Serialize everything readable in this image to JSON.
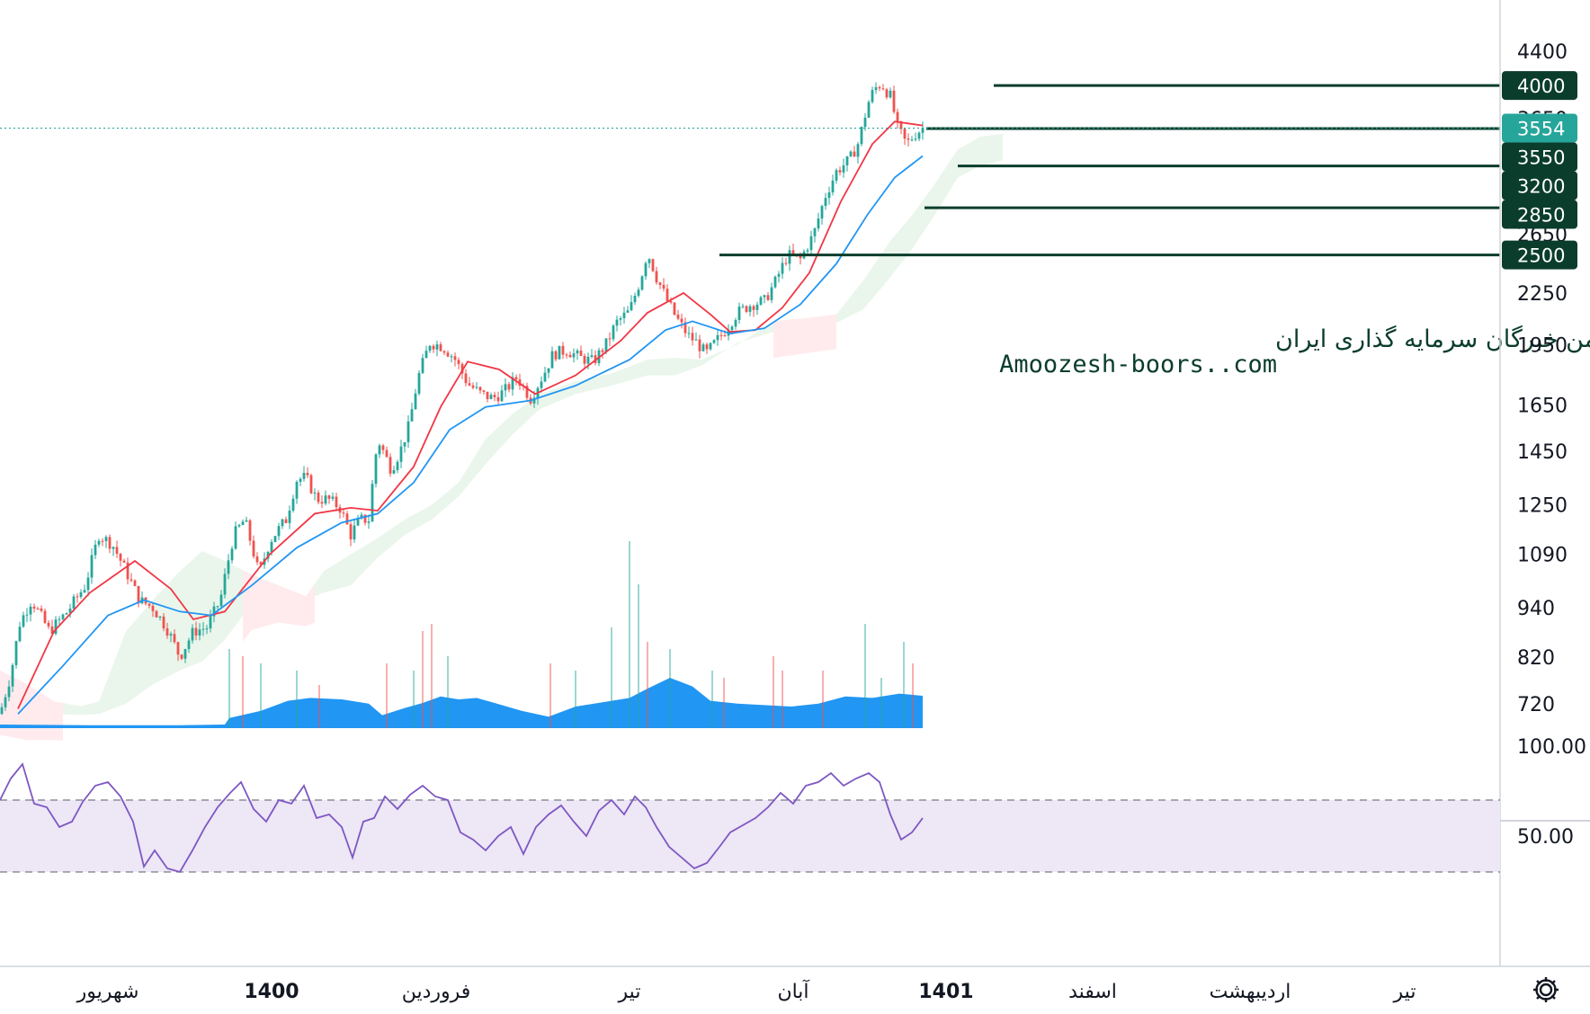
{
  "chart_data": {
    "type": "candlestick",
    "price_axis": {
      "scale": "log",
      "ylim": [
        690,
        4800
      ],
      "ticks": [
        "4400",
        "3650",
        "2650",
        "2250",
        "1950",
        "1650",
        "1450",
        "1250",
        "1090",
        "940",
        "820",
        "720"
      ]
    },
    "rsi_axis": {
      "ylim": [
        0,
        100
      ],
      "ticks": [
        "100.00",
        "50.00"
      ],
      "upper_band": 70,
      "lower_band": 30
    },
    "time_axis": {
      "labels": [
        {
          "text": "شهریور",
          "bold": false
        },
        {
          "text": "1400",
          "bold": true
        },
        {
          "text": "فروردین",
          "bold": false
        },
        {
          "text": "تیر",
          "bold": false
        },
        {
          "text": "آبان",
          "bold": false
        },
        {
          "text": "1401",
          "bold": true
        },
        {
          "text": "اسفند",
          "bold": false
        },
        {
          "text": "اردیبهشت",
          "bold": false
        },
        {
          "text": "تیر",
          "bold": false
        }
      ]
    },
    "last_price": {
      "value": 3554,
      "label": "3554"
    },
    "levels": [
      {
        "value": 4000,
        "label": "4000"
      },
      {
        "value": 3550,
        "label": "3550"
      },
      {
        "value": 3200,
        "label": "3200"
      },
      {
        "value": 2850,
        "label": "2850"
      },
      {
        "value": 2500,
        "label": "2500"
      }
    ],
    "price_path": [
      [
        0,
        700
      ],
      [
        12,
        780
      ],
      [
        22,
        900
      ],
      [
        35,
        960
      ],
      [
        55,
        880
      ],
      [
        75,
        930
      ],
      [
        95,
        1000
      ],
      [
        110,
        1150
      ],
      [
        125,
        1120
      ],
      [
        140,
        1040
      ],
      [
        155,
        960
      ],
      [
        170,
        940
      ],
      [
        185,
        890
      ],
      [
        200,
        820
      ],
      [
        215,
        880
      ],
      [
        230,
        890
      ],
      [
        245,
        960
      ],
      [
        260,
        1150
      ],
      [
        272,
        1200
      ],
      [
        288,
        1030
      ],
      [
        300,
        1130
      ],
      [
        318,
        1200
      ],
      [
        330,
        1340
      ],
      [
        340,
        1350
      ],
      [
        352,
        1270
      ],
      [
        365,
        1270
      ],
      [
        378,
        1240
      ],
      [
        390,
        1150
      ],
      [
        400,
        1200
      ],
      [
        410,
        1200
      ],
      [
        420,
        1500
      ],
      [
        435,
        1380
      ],
      [
        445,
        1450
      ],
      [
        455,
        1560
      ],
      [
        465,
        1780
      ],
      [
        478,
        1960
      ],
      [
        492,
        1940
      ],
      [
        505,
        1880
      ],
      [
        520,
        1750
      ],
      [
        535,
        1700
      ],
      [
        548,
        1680
      ],
      [
        560,
        1710
      ],
      [
        575,
        1780
      ],
      [
        590,
        1680
      ],
      [
        605,
        1800
      ],
      [
        615,
        1900
      ],
      [
        630,
        1920
      ],
      [
        645,
        1880
      ],
      [
        660,
        1860
      ],
      [
        675,
        1960
      ],
      [
        685,
        2070
      ],
      [
        700,
        2140
      ],
      [
        712,
        2330
      ],
      [
        720,
        2520
      ],
      [
        730,
        2350
      ],
      [
        742,
        2200
      ],
      [
        752,
        2100
      ],
      [
        765,
        2000
      ],
      [
        775,
        1960
      ],
      [
        785,
        1900
      ],
      [
        795,
        1960
      ],
      [
        805,
        2020
      ],
      [
        820,
        2130
      ],
      [
        835,
        2180
      ],
      [
        850,
        2200
      ],
      [
        862,
        2320
      ],
      [
        876,
        2500
      ],
      [
        890,
        2470
      ],
      [
        905,
        2650
      ],
      [
        918,
        2950
      ],
      [
        930,
        3150
      ],
      [
        945,
        3260
      ],
      [
        955,
        3420
      ],
      [
        965,
        3800
      ],
      [
        972,
        3960
      ],
      [
        980,
        4020
      ],
      [
        990,
        3880
      ],
      [
        998,
        3560
      ],
      [
        1008,
        3400
      ],
      [
        1018,
        3500
      ],
      [
        1026,
        3554
      ]
    ],
    "ema_fast_path": [
      [
        20,
        710
      ],
      [
        60,
        880
      ],
      [
        100,
        980
      ],
      [
        150,
        1070
      ],
      [
        190,
        990
      ],
      [
        215,
        910
      ],
      [
        250,
        930
      ],
      [
        300,
        1090
      ],
      [
        350,
        1220
      ],
      [
        390,
        1240
      ],
      [
        420,
        1230
      ],
      [
        460,
        1390
      ],
      [
        490,
        1640
      ],
      [
        520,
        1860
      ],
      [
        555,
        1820
      ],
      [
        595,
        1700
      ],
      [
        640,
        1790
      ],
      [
        690,
        1970
      ],
      [
        720,
        2130
      ],
      [
        760,
        2250
      ],
      [
        790,
        2120
      ],
      [
        812,
        2020
      ],
      [
        840,
        2030
      ],
      [
        870,
        2160
      ],
      [
        900,
        2380
      ],
      [
        935,
        2900
      ],
      [
        970,
        3400
      ],
      [
        995,
        3620
      ],
      [
        1026,
        3580
      ]
    ],
    "ema_slow_path": [
      [
        20,
        700
      ],
      [
        70,
        800
      ],
      [
        120,
        920
      ],
      [
        160,
        960
      ],
      [
        200,
        930
      ],
      [
        235,
        920
      ],
      [
        280,
        1000
      ],
      [
        330,
        1110
      ],
      [
        380,
        1190
      ],
      [
        420,
        1220
      ],
      [
        460,
        1330
      ],
      [
        500,
        1540
      ],
      [
        540,
        1640
      ],
      [
        590,
        1670
      ],
      [
        640,
        1740
      ],
      [
        700,
        1870
      ],
      [
        740,
        2030
      ],
      [
        770,
        2080
      ],
      [
        812,
        2010
      ],
      [
        850,
        2040
      ],
      [
        890,
        2180
      ],
      [
        930,
        2440
      ],
      [
        965,
        2800
      ],
      [
        995,
        3100
      ],
      [
        1026,
        3290
      ]
    ],
    "cloud_upper_path": [
      [
        0,
        790
      ],
      [
        30,
        760
      ],
      [
        60,
        725
      ],
      [
        90,
        715
      ],
      [
        110,
        725
      ],
      [
        140,
        880
      ],
      [
        170,
        960
      ],
      [
        200,
        1040
      ],
      [
        225,
        1100
      ],
      [
        250,
        1070
      ],
      [
        280,
        1030
      ],
      [
        310,
        1000
      ],
      [
        340,
        970
      ],
      [
        360,
        1040
      ],
      [
        390,
        1090
      ],
      [
        420,
        1140
      ],
      [
        450,
        1200
      ],
      [
        480,
        1250
      ],
      [
        510,
        1330
      ],
      [
        540,
        1500
      ],
      [
        570,
        1610
      ],
      [
        600,
        1700
      ],
      [
        640,
        1760
      ],
      [
        680,
        1800
      ],
      [
        720,
        1870
      ],
      [
        750,
        1880
      ],
      [
        780,
        1870
      ],
      [
        820,
        1950
      ],
      [
        860,
        2080
      ],
      [
        900,
        2100
      ],
      [
        930,
        2120
      ],
      [
        960,
        2330
      ],
      [
        990,
        2600
      ],
      [
        1015,
        2800
      ],
      [
        1040,
        3050
      ],
      [
        1065,
        3350
      ],
      [
        1090,
        3470
      ],
      [
        1115,
        3500
      ]
    ],
    "cloud_lower_path": [
      [
        0,
        710
      ],
      [
        30,
        700
      ],
      [
        60,
        700
      ],
      [
        90,
        698
      ],
      [
        110,
        700
      ],
      [
        140,
        720
      ],
      [
        170,
        760
      ],
      [
        200,
        790
      ],
      [
        225,
        810
      ],
      [
        250,
        860
      ],
      [
        280,
        950
      ],
      [
        310,
        970
      ],
      [
        340,
        960
      ],
      [
        360,
        980
      ],
      [
        390,
        1000
      ],
      [
        420,
        1080
      ],
      [
        450,
        1150
      ],
      [
        480,
        1200
      ],
      [
        510,
        1280
      ],
      [
        540,
        1400
      ],
      [
        570,
        1520
      ],
      [
        600,
        1630
      ],
      [
        640,
        1700
      ],
      [
        680,
        1740
      ],
      [
        720,
        1790
      ],
      [
        750,
        1790
      ],
      [
        780,
        1840
      ],
      [
        820,
        1960
      ],
      [
        860,
        2020
      ],
      [
        900,
        2050
      ],
      [
        930,
        2070
      ],
      [
        960,
        2150
      ],
      [
        990,
        2350
      ],
      [
        1015,
        2550
      ],
      [
        1040,
        2800
      ],
      [
        1065,
        3100
      ],
      [
        1090,
        3200
      ],
      [
        1115,
        3250
      ]
    ],
    "bearish_cloud_spans": [
      [
        0,
        70
      ],
      [
        270,
        350
      ],
      [
        860,
        930
      ]
    ],
    "volume_area_path": [
      [
        0,
        0.05
      ],
      [
        100,
        0.04
      ],
      [
        200,
        0.04
      ],
      [
        250,
        0.05
      ],
      [
        255,
        0.14
      ],
      [
        290,
        0.24
      ],
      [
        320,
        0.38
      ],
      [
        345,
        0.42
      ],
      [
        380,
        0.4
      ],
      [
        410,
        0.34
      ],
      [
        425,
        0.18
      ],
      [
        450,
        0.28
      ],
      [
        470,
        0.35
      ],
      [
        490,
        0.44
      ],
      [
        510,
        0.4
      ],
      [
        530,
        0.42
      ],
      [
        550,
        0.35
      ],
      [
        580,
        0.24
      ],
      [
        610,
        0.16
      ],
      [
        640,
        0.3
      ],
      [
        670,
        0.36
      ],
      [
        700,
        0.42
      ],
      [
        720,
        0.55
      ],
      [
        745,
        0.7
      ],
      [
        770,
        0.58
      ],
      [
        790,
        0.38
      ],
      [
        820,
        0.34
      ],
      [
        850,
        0.32
      ],
      [
        880,
        0.3
      ],
      [
        910,
        0.34
      ],
      [
        940,
        0.44
      ],
      [
        970,
        0.42
      ],
      [
        1000,
        0.48
      ],
      [
        1026,
        0.45
      ]
    ],
    "volume_spikes": [
      [
        255,
        1.1,
        "g"
      ],
      [
        270,
        1.0,
        "r"
      ],
      [
        290,
        0.9,
        "g"
      ],
      [
        330,
        0.8,
        "g"
      ],
      [
        355,
        0.6,
        "r"
      ],
      [
        430,
        0.9,
        "r"
      ],
      [
        460,
        0.8,
        "g"
      ],
      [
        470,
        1.35,
        "r"
      ],
      [
        480,
        1.45,
        "r"
      ],
      [
        498,
        1.0,
        "g"
      ],
      [
        612,
        0.9,
        "r"
      ],
      [
        640,
        0.8,
        "g"
      ],
      [
        680,
        1.4,
        "g"
      ],
      [
        700,
        2.6,
        "g"
      ],
      [
        710,
        2.0,
        "g"
      ],
      [
        720,
        1.2,
        "r"
      ],
      [
        745,
        1.1,
        "g"
      ],
      [
        792,
        0.8,
        "g"
      ],
      [
        805,
        0.7,
        "r"
      ],
      [
        860,
        1.0,
        "r"
      ],
      [
        870,
        0.8,
        "r"
      ],
      [
        915,
        0.8,
        "r"
      ],
      [
        962,
        1.45,
        "g"
      ],
      [
        980,
        0.7,
        "g"
      ],
      [
        1005,
        1.2,
        "g"
      ],
      [
        1015,
        0.9,
        "r"
      ]
    ],
    "rsi_path": [
      [
        0,
        70
      ],
      [
        12,
        82
      ],
      [
        25,
        90
      ],
      [
        38,
        68
      ],
      [
        52,
        66
      ],
      [
        66,
        55
      ],
      [
        80,
        58
      ],
      [
        92,
        69
      ],
      [
        106,
        78
      ],
      [
        120,
        80
      ],
      [
        134,
        72
      ],
      [
        148,
        58
      ],
      [
        160,
        33
      ],
      [
        172,
        42
      ],
      [
        186,
        32
      ],
      [
        200,
        30
      ],
      [
        214,
        42
      ],
      [
        228,
        55
      ],
      [
        242,
        66
      ],
      [
        256,
        74
      ],
      [
        268,
        80
      ],
      [
        282,
        65
      ],
      [
        296,
        58
      ],
      [
        310,
        70
      ],
      [
        324,
        68
      ],
      [
        338,
        78
      ],
      [
        352,
        60
      ],
      [
        366,
        62
      ],
      [
        380,
        55
      ],
      [
        392,
        38
      ],
      [
        404,
        58
      ],
      [
        416,
        60
      ],
      [
        428,
        72
      ],
      [
        442,
        65
      ],
      [
        456,
        73
      ],
      [
        470,
        78
      ],
      [
        484,
        72
      ],
      [
        498,
        70
      ],
      [
        512,
        52
      ],
      [
        526,
        48
      ],
      [
        540,
        42
      ],
      [
        554,
        50
      ],
      [
        568,
        55
      ],
      [
        582,
        40
      ],
      [
        596,
        55
      ],
      [
        610,
        62
      ],
      [
        624,
        67
      ],
      [
        638,
        58
      ],
      [
        652,
        50
      ],
      [
        666,
        64
      ],
      [
        680,
        70
      ],
      [
        694,
        62
      ],
      [
        706,
        72
      ],
      [
        718,
        66
      ],
      [
        730,
        55
      ],
      [
        744,
        44
      ],
      [
        758,
        38
      ],
      [
        772,
        32
      ],
      [
        786,
        35
      ],
      [
        800,
        44
      ],
      [
        812,
        52
      ],
      [
        826,
        56
      ],
      [
        840,
        60
      ],
      [
        854,
        66
      ],
      [
        868,
        74
      ],
      [
        882,
        68
      ],
      [
        896,
        78
      ],
      [
        910,
        80
      ],
      [
        924,
        85
      ],
      [
        938,
        78
      ],
      [
        952,
        82
      ],
      [
        966,
        85
      ],
      [
        978,
        80
      ],
      [
        990,
        62
      ],
      [
        1002,
        48
      ],
      [
        1014,
        52
      ],
      [
        1026,
        60
      ]
    ]
  },
  "watermark": {
    "line1": "انجمن خبرگان سرمایه گذاری ایران",
    "line2": "Amoozesh-boors..com"
  },
  "colors": {
    "up": "#26a69a",
    "down": "#ef5350",
    "ema_fast": "#f23645",
    "ema_slow": "#2196f3",
    "rsi": "#7e57c2",
    "rsi_band": "#ede7f6",
    "volume": "#2196f3",
    "level": "#0b3d2c",
    "last_price": "#26a69a",
    "cloud_bull": "#e8f5e9",
    "cloud_bear": "#ffebee"
  },
  "toolbar": {
    "settings_icon": "gear-icon"
  }
}
